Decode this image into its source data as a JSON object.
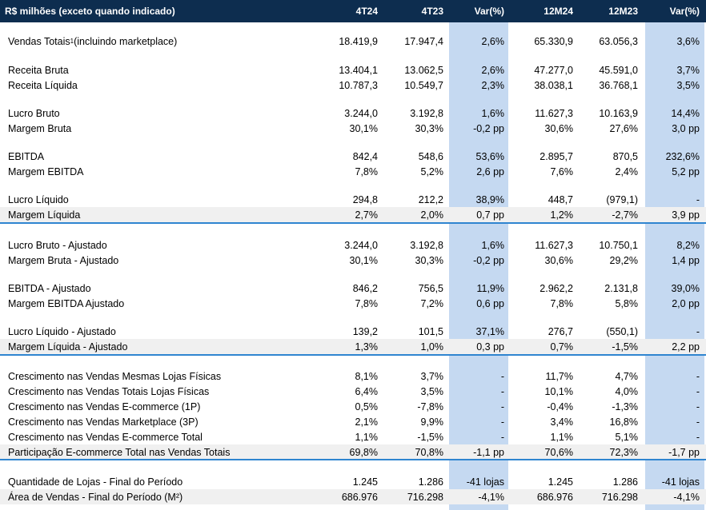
{
  "table": {
    "header": [
      "R$ milhões (exceto quando indicado)",
      "4T24",
      "4T23",
      "Var(%)",
      "12M24",
      "12M23",
      "Var(%)"
    ],
    "groups": [
      {
        "rows": [
          {
            "label": "Vendas Totais",
            "label_sup": "1",
            "label_suffix": " (incluindo marketplace)",
            "values": [
              "18.419,9",
              "17.947,4",
              "2,6%",
              "65.330,9",
              "63.056,3",
              "3,6%"
            ]
          }
        ]
      },
      {
        "rows": [
          {
            "label": "Receita Bruta",
            "values": [
              "13.404,1",
              "13.062,5",
              "2,6%",
              "47.277,0",
              "45.591,0",
              "3,7%"
            ]
          },
          {
            "label": "Receita Líquida",
            "values": [
              "10.787,3",
              "10.549,7",
              "2,3%",
              "38.038,1",
              "36.768,1",
              "3,5%"
            ]
          }
        ]
      },
      {
        "rows": [
          {
            "label": "Lucro Bruto",
            "values": [
              "3.244,0",
              "3.192,8",
              "1,6%",
              "11.627,3",
              "10.163,9",
              "14,4%"
            ]
          },
          {
            "label": "Margem Bruta",
            "values": [
              "30,1%",
              "30,3%",
              "-0,2 pp",
              "30,6%",
              "27,6%",
              "3,0 pp"
            ]
          }
        ]
      },
      {
        "rows": [
          {
            "label": "EBITDA",
            "values": [
              "842,4",
              "548,6",
              "53,6%",
              "2.895,7",
              "870,5",
              "232,6%"
            ]
          },
          {
            "label": "Margem EBITDA",
            "values": [
              "7,8%",
              "5,2%",
              "2,6 pp",
              "7,6%",
              "2,4%",
              "5,2 pp"
            ]
          }
        ]
      },
      {
        "rows": [
          {
            "label": "Lucro Líquido",
            "values": [
              "294,8",
              "212,2",
              "38,9%",
              "448,7",
              "(979,1)",
              "-"
            ]
          },
          {
            "label": "Margem Líquida",
            "values": [
              "2,7%",
              "2,0%",
              "0,7 pp",
              "1,2%",
              "-2,7%",
              "3,9 pp"
            ]
          }
        ]
      },
      {
        "rows": [
          {
            "label": "Lucro Bruto - Ajustado",
            "values": [
              "3.244,0",
              "3.192,8",
              "1,6%",
              "11.627,3",
              "10.750,1",
              "8,2%"
            ]
          },
          {
            "label": "Margem Bruta - Ajustado",
            "values": [
              "30,1%",
              "30,3%",
              "-0,2 pp",
              "30,6%",
              "29,2%",
              "1,4 pp"
            ]
          }
        ]
      },
      {
        "rows": [
          {
            "label": "EBITDA - Ajustado",
            "values": [
              "846,2",
              "756,5",
              "11,9%",
              "2.962,2",
              "2.131,8",
              "39,0%"
            ]
          },
          {
            "label": "Margem EBITDA Ajustado",
            "values": [
              "7,8%",
              "7,2%",
              "0,6 pp",
              "7,8%",
              "5,8%",
              "2,0 pp"
            ]
          }
        ]
      },
      {
        "rows": [
          {
            "label": "Lucro Líquido - Ajustado",
            "values": [
              "139,2",
              "101,5",
              "37,1%",
              "276,7",
              "(550,1)",
              "-"
            ]
          },
          {
            "label": "Margem Líquida - Ajustado",
            "values": [
              "1,3%",
              "1,0%",
              "0,3 pp",
              "0,7%",
              "-1,5%",
              "2,2 pp"
            ]
          }
        ]
      },
      {
        "rows": [
          {
            "label": "Crescimento nas Vendas Mesmas Lojas Físicas",
            "values": [
              "8,1%",
              "3,7%",
              "-",
              "11,7%",
              "4,7%",
              "-"
            ]
          },
          {
            "label": "Crescimento nas Vendas Totais Lojas Físicas",
            "values": [
              "6,4%",
              "3,5%",
              "-",
              "10,1%",
              "4,0%",
              "-"
            ]
          },
          {
            "label": "Crescimento nas Vendas E-commerce (1P)",
            "values": [
              "0,5%",
              "-7,8%",
              "-",
              "-0,4%",
              "-1,3%",
              "-"
            ]
          },
          {
            "label": "Crescimento nas Vendas Marketplace (3P)",
            "values": [
              "2,1%",
              "9,9%",
              "-",
              "3,4%",
              "16,8%",
              "-"
            ]
          },
          {
            "label": "Crescimento nas Vendas E-commerce Total",
            "values": [
              "1,1%",
              "-1,5%",
              "-",
              "1,1%",
              "5,1%",
              "-"
            ]
          },
          {
            "label": "Participação E-commerce Total nas Vendas Totais",
            "values": [
              "69,8%",
              "70,8%",
              "-1,1 pp",
              "70,6%",
              "72,3%",
              "-1,7 pp"
            ]
          }
        ]
      },
      {
        "rows": [
          {
            "label": "Quantidade de Lojas - Final do Período",
            "values": [
              "1.245",
              "1.286",
              "-41 lojas",
              "1.245",
              "1.286",
              "-41 lojas"
            ]
          },
          {
            "label": "Área de Vendas - Final do Período (M²)",
            "values": [
              "686.976",
              "716.298",
              "-4,1%",
              "686.976",
              "716.298",
              "-4,1%"
            ]
          }
        ]
      }
    ]
  },
  "colors": {
    "header_bg": "#0d2d4f",
    "var_column_bg": "#c5d9f1",
    "separator": "#2f85d0",
    "shaded_row": "#f0f0f0"
  }
}
